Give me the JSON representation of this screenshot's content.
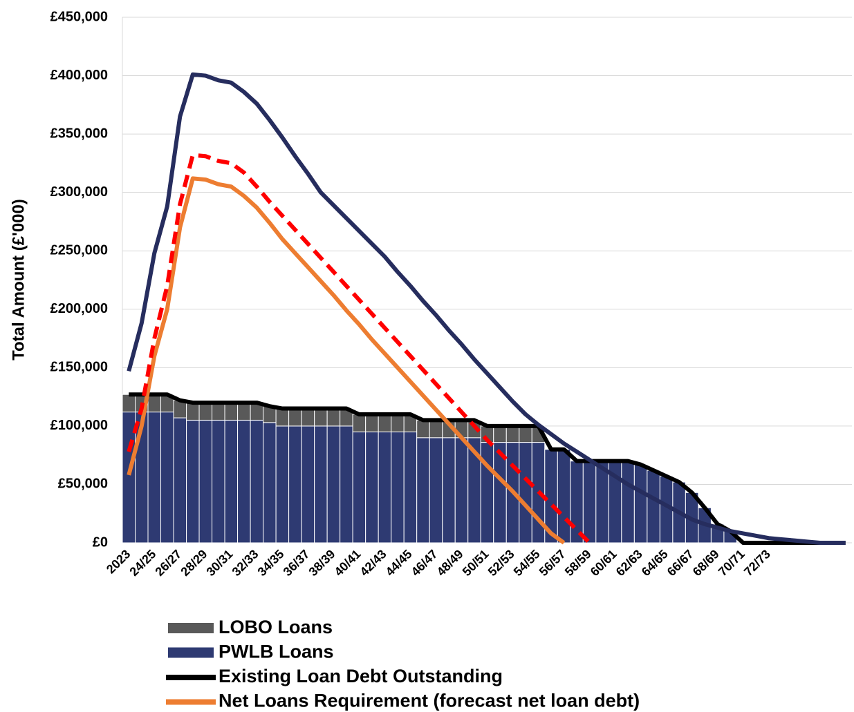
{
  "chart_data": {
    "type": "bar",
    "y_label": "Total Amount (£'000)",
    "categories": [
      "2023",
      null,
      "24/25",
      null,
      "26/27",
      null,
      "28/29",
      null,
      "30/31",
      null,
      "32/33",
      null,
      "34/35",
      null,
      "36/37",
      null,
      "38/39",
      null,
      "40/41",
      null,
      "42/43",
      null,
      "44/45",
      null,
      "46/47",
      null,
      "48/49",
      null,
      "50/51",
      null,
      "52/53",
      null,
      "54/55",
      null,
      "56/57",
      null,
      "58/59",
      null,
      "60/61",
      null,
      "62/63",
      null,
      "64/65",
      null,
      "66/67",
      null,
      "68/69",
      null,
      "70/71",
      null,
      "72/73",
      null,
      null,
      null,
      null,
      null,
      null
    ],
    "ylim": [
      0,
      450000
    ],
    "yticks": [
      {
        "value": 0,
        "label": "£0"
      },
      {
        "value": 50000,
        "label": "£50,000"
      },
      {
        "value": 100000,
        "label": "£100,000"
      },
      {
        "value": 150000,
        "label": "£150,000"
      },
      {
        "value": 200000,
        "label": "£200,000"
      },
      {
        "value": 250000,
        "label": "£250,000"
      },
      {
        "value": 300000,
        "label": "£300,000"
      },
      {
        "value": 350000,
        "label": "£350,000"
      },
      {
        "value": 400000,
        "label": "£400,000"
      },
      {
        "value": 450000,
        "label": "£450,000"
      }
    ],
    "grid": true,
    "series": [
      {
        "name": "LOBO Loans",
        "type": "bar",
        "color": "#595959",
        "values": [
          15000,
          15000,
          15000,
          15000,
          15000,
          15000,
          15000,
          15000,
          15000,
          15000,
          15000,
          14000,
          15000,
          15000,
          15000,
          15000,
          15000,
          15000,
          15000,
          15000,
          15000,
          15000,
          15000,
          15000,
          15000,
          15000,
          15000,
          15000,
          14000,
          14000,
          14000,
          14000,
          14000,
          0,
          0,
          0,
          0,
          0,
          0,
          0,
          0,
          0,
          0,
          0,
          0,
          0,
          0,
          0,
          0,
          0,
          0,
          0,
          0,
          0,
          0,
          0,
          0
        ]
      },
      {
        "name": "PWLB Loans",
        "type": "bar",
        "color": "#2e3a72",
        "values": [
          112000,
          112000,
          112000,
          112000,
          107000,
          105000,
          105000,
          105000,
          105000,
          105000,
          105000,
          103000,
          100000,
          100000,
          100000,
          100000,
          100000,
          100000,
          95000,
          95000,
          95000,
          95000,
          95000,
          90000,
          90000,
          90000,
          90000,
          90000,
          86000,
          86000,
          86000,
          86000,
          86000,
          80000,
          80000,
          70000,
          70000,
          70000,
          70000,
          70000,
          67000,
          62000,
          57000,
          52000,
          43000,
          30000,
          16000,
          10000,
          0,
          0,
          0,
          0,
          0,
          0,
          0,
          0,
          0
        ]
      },
      {
        "name": "Existing Loan Debt Outstanding",
        "type": "line",
        "color": "#000000",
        "values": [
          127000,
          127000,
          127000,
          127000,
          122000,
          120000,
          120000,
          120000,
          120000,
          120000,
          120000,
          117000,
          115000,
          115000,
          115000,
          115000,
          115000,
          115000,
          110000,
          110000,
          110000,
          110000,
          110000,
          105000,
          105000,
          105000,
          105000,
          105000,
          100000,
          100000,
          100000,
          100000,
          100000,
          80000,
          80000,
          70000,
          70000,
          70000,
          70000,
          70000,
          67000,
          62000,
          57000,
          52000,
          43000,
          30000,
          16000,
          10000,
          0,
          0,
          0,
          0,
          0,
          0,
          0,
          0,
          0
        ]
      },
      {
        "name": "Net Loans Requirement (forecast net loan debt)",
        "type": "line",
        "color": "#ed7d31",
        "values": [
          58000,
          100000,
          160000,
          200000,
          270000,
          312000,
          311000,
          307000,
          305000,
          297000,
          287000,
          274000,
          260000,
          248000,
          236000,
          224000,
          212000,
          199000,
          187000,
          174000,
          162000,
          150000,
          138000,
          126000,
          114000,
          102000,
          90000,
          78000,
          66000,
          55000,
          44000,
          32000,
          20000,
          8000,
          0,
          null,
          null,
          null,
          null,
          null,
          null,
          null,
          null,
          null,
          null,
          null,
          null,
          null,
          null,
          null,
          null,
          null,
          null,
          null,
          null,
          null,
          null
        ]
      },
      {
        "type": "line",
        "color": "#262d5e",
        "values": [
          147000,
          188000,
          248000,
          288000,
          365000,
          401000,
          400000,
          396000,
          394000,
          386000,
          376000,
          362000,
          347000,
          331000,
          316000,
          300000,
          289000,
          278000,
          267000,
          256000,
          245000,
          232000,
          220000,
          207000,
          195000,
          182000,
          170000,
          157000,
          145000,
          133000,
          121000,
          110000,
          101000,
          93000,
          85000,
          78000,
          71000,
          64000,
          57000,
          50000,
          44000,
          38000,
          32000,
          26000,
          20000,
          16000,
          13000,
          10000,
          8000,
          6000,
          4000,
          3000,
          2000,
          1000,
          0,
          0,
          0
        ]
      },
      {
        "type": "line",
        "color": "#ff0000",
        "dash": true,
        "values": [
          78000,
          115000,
          175000,
          220000,
          290000,
          332000,
          331000,
          327000,
          325000,
          317000,
          305000,
          292000,
          280000,
          268000,
          256000,
          244000,
          232000,
          220000,
          208000,
          196000,
          184000,
          172000,
          160000,
          148000,
          136000,
          124000,
          112000,
          100000,
          88000,
          77000,
          66000,
          55000,
          44000,
          33000,
          22000,
          11000,
          0,
          null,
          null,
          null,
          null,
          null,
          null,
          null,
          null,
          null,
          null,
          null,
          null,
          null,
          null,
          null,
          null,
          null,
          null,
          null,
          null
        ]
      }
    ]
  }
}
